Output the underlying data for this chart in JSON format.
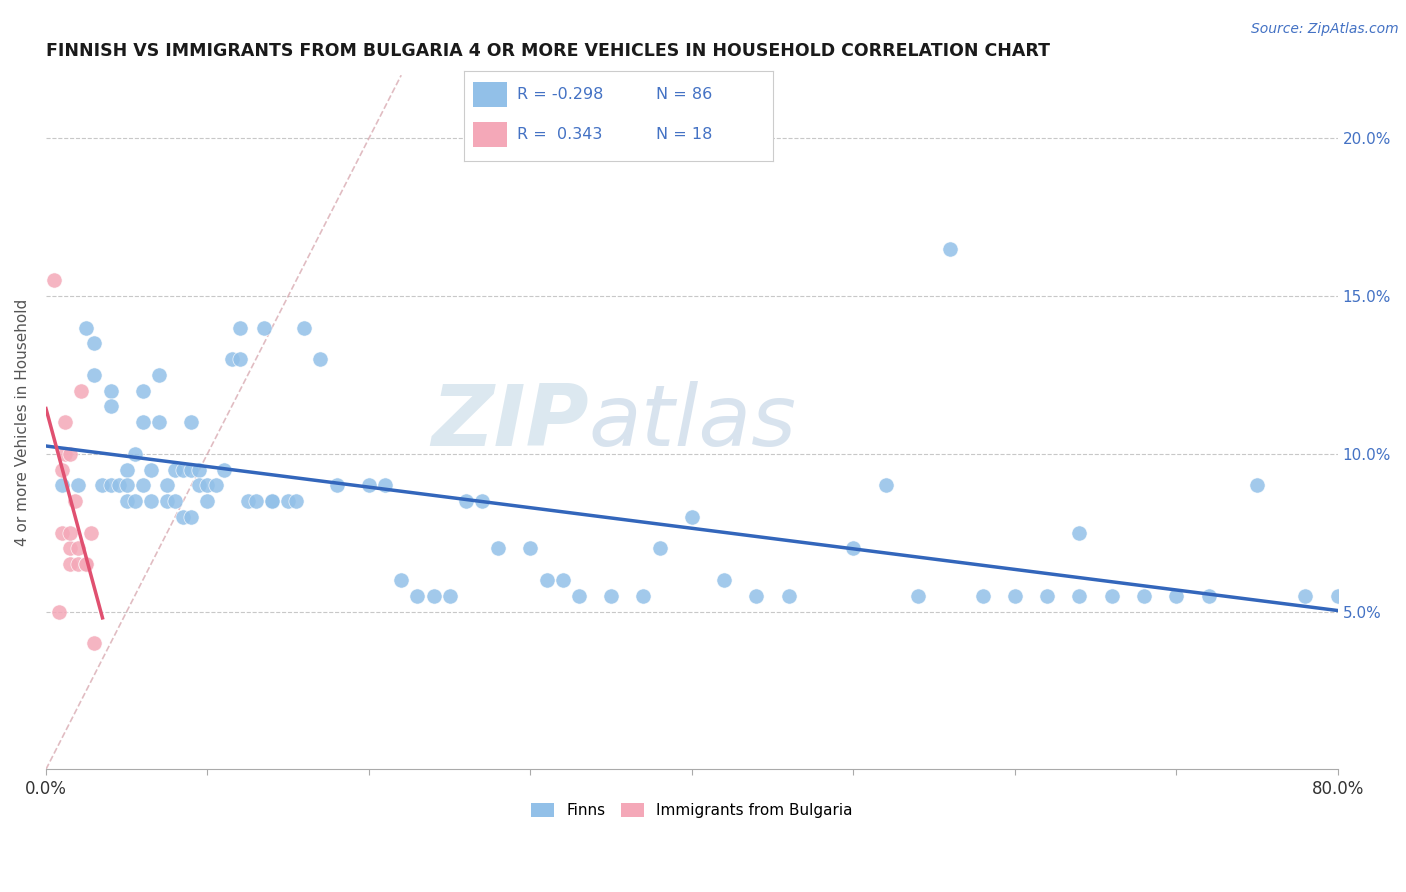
{
  "title": "FINNISH VS IMMIGRANTS FROM BULGARIA 4 OR MORE VEHICLES IN HOUSEHOLD CORRELATION CHART",
  "source": "Source: ZipAtlas.com",
  "ylabel": "4 or more Vehicles in Household",
  "right_yticks": [
    "5.0%",
    "10.0%",
    "15.0%",
    "20.0%"
  ],
  "right_ytick_vals": [
    0.05,
    0.1,
    0.15,
    0.2
  ],
  "legend_r_finns": "-0.298",
  "legend_n_finns": "86",
  "legend_r_bulgaria": "0.343",
  "legend_n_bulgaria": "18",
  "finns_color": "#92c0e8",
  "bulgaria_color": "#f4a8b8",
  "finns_line_color": "#3366bb",
  "bulgaria_line_color": "#e05070",
  "diag_line_color": "#e0b0b8",
  "background_color": "#ffffff",
  "watermark_zip": "ZIP",
  "watermark_atlas": "atlas",
  "finns_scatter_x": [
    0.01,
    0.02,
    0.025,
    0.03,
    0.03,
    0.035,
    0.04,
    0.04,
    0.04,
    0.045,
    0.05,
    0.05,
    0.05,
    0.055,
    0.055,
    0.06,
    0.06,
    0.06,
    0.065,
    0.065,
    0.07,
    0.07,
    0.075,
    0.075,
    0.08,
    0.08,
    0.085,
    0.085,
    0.09,
    0.09,
    0.09,
    0.095,
    0.095,
    0.1,
    0.1,
    0.105,
    0.11,
    0.115,
    0.12,
    0.12,
    0.125,
    0.13,
    0.135,
    0.14,
    0.14,
    0.15,
    0.155,
    0.16,
    0.17,
    0.18,
    0.2,
    0.21,
    0.22,
    0.23,
    0.24,
    0.25,
    0.26,
    0.27,
    0.28,
    0.3,
    0.31,
    0.32,
    0.33,
    0.35,
    0.37,
    0.38,
    0.4,
    0.42,
    0.44,
    0.46,
    0.5,
    0.52,
    0.54,
    0.56,
    0.58,
    0.6,
    0.62,
    0.64,
    0.66,
    0.68,
    0.72,
    0.75,
    0.78,
    0.64,
    0.7,
    0.8
  ],
  "finns_scatter_y": [
    0.09,
    0.09,
    0.14,
    0.135,
    0.125,
    0.09,
    0.12,
    0.115,
    0.09,
    0.09,
    0.095,
    0.09,
    0.085,
    0.1,
    0.085,
    0.12,
    0.11,
    0.09,
    0.095,
    0.085,
    0.125,
    0.11,
    0.09,
    0.085,
    0.095,
    0.085,
    0.095,
    0.08,
    0.11,
    0.095,
    0.08,
    0.095,
    0.09,
    0.09,
    0.085,
    0.09,
    0.095,
    0.13,
    0.13,
    0.14,
    0.085,
    0.085,
    0.14,
    0.085,
    0.085,
    0.085,
    0.085,
    0.14,
    0.13,
    0.09,
    0.09,
    0.09,
    0.06,
    0.055,
    0.055,
    0.055,
    0.085,
    0.085,
    0.07,
    0.07,
    0.06,
    0.06,
    0.055,
    0.055,
    0.055,
    0.07,
    0.08,
    0.06,
    0.055,
    0.055,
    0.07,
    0.09,
    0.055,
    0.165,
    0.055,
    0.055,
    0.055,
    0.055,
    0.055,
    0.055,
    0.055,
    0.09,
    0.055,
    0.075,
    0.055,
    0.055
  ],
  "bulgaria_scatter_x": [
    0.005,
    0.008,
    0.01,
    0.01,
    0.012,
    0.012,
    0.015,
    0.015,
    0.015,
    0.015,
    0.018,
    0.02,
    0.02,
    0.022,
    0.025,
    0.025,
    0.028,
    0.03
  ],
  "bulgaria_scatter_y": [
    0.155,
    0.05,
    0.075,
    0.095,
    0.1,
    0.11,
    0.065,
    0.07,
    0.075,
    0.1,
    0.085,
    0.065,
    0.07,
    0.12,
    0.065,
    0.065,
    0.075,
    0.04
  ],
  "xlim": [
    0.0,
    0.8
  ],
  "ylim": [
    0.0,
    0.22
  ],
  "diag_line_x": [
    0.0,
    0.22
  ],
  "diag_line_y": [
    0.0,
    0.22
  ]
}
